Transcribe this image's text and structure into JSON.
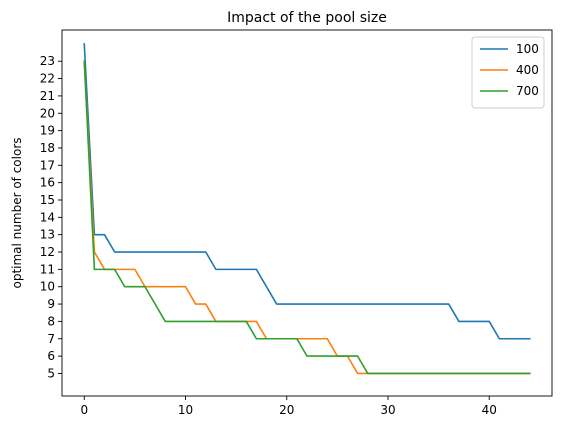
{
  "chart_data": {
    "type": "line",
    "title": "Impact of the pool size",
    "xlabel": "",
    "ylabel": "optimal number of colors",
    "xlim": [
      -2.2,
      46.2
    ],
    "ylim": [
      3.7,
      24.8
    ],
    "x_ticks": [
      0,
      10,
      20,
      30,
      40
    ],
    "y_ticks": [
      5,
      6,
      7,
      8,
      9,
      10,
      11,
      12,
      13,
      14,
      15,
      16,
      17,
      18,
      19,
      20,
      21,
      22,
      23
    ],
    "grid": false,
    "legend_position": "top-right",
    "series": [
      {
        "name": "100",
        "color": "#1f77b4",
        "points": [
          [
            0,
            24
          ],
          [
            1,
            13
          ],
          [
            2,
            13
          ],
          [
            3,
            12
          ],
          [
            12,
            12
          ],
          [
            13,
            11
          ],
          [
            17,
            11
          ],
          [
            19,
            9
          ],
          [
            36,
            9
          ],
          [
            37,
            8
          ],
          [
            40,
            8
          ],
          [
            41,
            7
          ],
          [
            44,
            7
          ]
        ]
      },
      {
        "name": "400",
        "color": "#ff7f0e",
        "points": [
          [
            0,
            23
          ],
          [
            1,
            12
          ],
          [
            2,
            11
          ],
          [
            5,
            11
          ],
          [
            6,
            10
          ],
          [
            10,
            10
          ],
          [
            11,
            9
          ],
          [
            12,
            9
          ],
          [
            13,
            8
          ],
          [
            17,
            8
          ],
          [
            18,
            7
          ],
          [
            24,
            7
          ],
          [
            25,
            6
          ],
          [
            26,
            6
          ],
          [
            27,
            5
          ],
          [
            44,
            5
          ]
        ]
      },
      {
        "name": "700",
        "color": "#2ca02c",
        "points": [
          [
            0,
            23
          ],
          [
            1,
            11
          ],
          [
            3,
            11
          ],
          [
            4,
            10
          ],
          [
            6,
            10
          ],
          [
            8,
            8
          ],
          [
            16,
            8
          ],
          [
            17,
            7
          ],
          [
            21,
            7
          ],
          [
            22,
            6
          ],
          [
            27,
            6
          ],
          [
            28,
            5
          ],
          [
            44,
            5
          ]
        ]
      }
    ]
  }
}
